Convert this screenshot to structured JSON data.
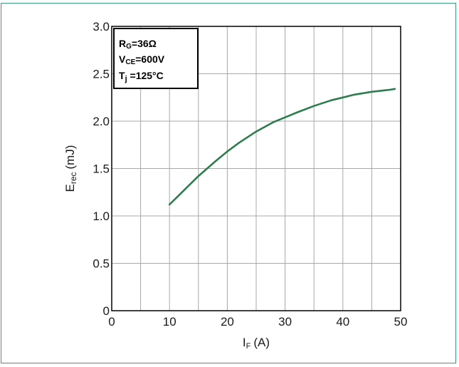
{
  "chart_data": {
    "type": "line",
    "xlabel_main": "I",
    "xlabel_sub": "F",
    "xlabel_unit": "(A)",
    "ylabel_main": "E",
    "ylabel_sub": "rec",
    "ylabel_unit": "(mJ)",
    "xlim": [
      0,
      50
    ],
    "ylim": [
      0,
      3.0
    ],
    "x_ticks": [
      0,
      10,
      20,
      30,
      40,
      50
    ],
    "x_tick_labels": [
      "0",
      "10",
      "20",
      "30",
      "40",
      "50"
    ],
    "y_ticks": [
      0,
      0.5,
      1.0,
      1.5,
      2.0,
      2.5,
      3.0
    ],
    "y_tick_labels": [
      "0",
      "0.5",
      "1.0",
      "1.5",
      "2.0",
      "2.5",
      "3.0"
    ],
    "grid": true,
    "x_minor_step": 5,
    "series": [
      {
        "color": "#2e7d4f",
        "x": [
          10,
          12,
          15,
          18,
          20,
          22,
          25,
          28,
          30,
          32,
          35,
          38,
          40,
          42,
          45,
          48,
          49
        ],
        "y": [
          1.12,
          1.24,
          1.42,
          1.58,
          1.68,
          1.77,
          1.89,
          1.99,
          2.04,
          2.09,
          2.16,
          2.22,
          2.25,
          2.28,
          2.31,
          2.33,
          2.34
        ]
      }
    ],
    "annotation": {
      "line1_main": "R",
      "line1_sub": "G",
      "line1_rest": "=36Ω",
      "line2_main": "V",
      "line2_sub": "CE",
      "line2_rest": "=600V",
      "line3_main": "T",
      "line3_sub": "j",
      "line3_rest": " =125°C"
    }
  }
}
